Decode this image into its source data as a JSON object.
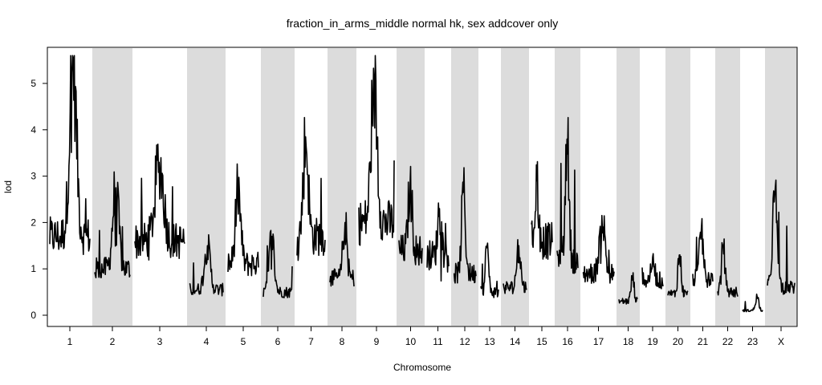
{
  "chart_data": {
    "type": "line",
    "title": "fraction_in_arms_middle normal hk, sex addcover only",
    "xlabel": "Chromosome",
    "ylabel": "lod",
    "ylim": [
      0,
      5.6
    ],
    "yticks": [
      0,
      1,
      2,
      3,
      4,
      5
    ],
    "grid": false,
    "legend": "none",
    "shading": {
      "color": "#dcdcdc",
      "pattern": "alternate chromosomes shaded"
    },
    "line_color": "#000000",
    "chromosomes": [
      {
        "label": "1",
        "shaded": false,
        "peak": 5.55,
        "mean": 1.7
      },
      {
        "label": "2",
        "shaded": true,
        "peak": 2.75,
        "mean": 1.0
      },
      {
        "label": "3",
        "shaded": false,
        "peak": 3.3,
        "mean": 1.6
      },
      {
        "label": "4",
        "shaded": true,
        "peak": 1.5,
        "mean": 0.55
      },
      {
        "label": "5",
        "shaded": false,
        "peak": 2.7,
        "mean": 1.1
      },
      {
        "label": "6",
        "shaded": true,
        "peak": 1.7,
        "mean": 0.5
      },
      {
        "label": "7",
        "shaded": false,
        "peak": 3.85,
        "mean": 1.7
      },
      {
        "label": "8",
        "shaded": true,
        "peak": 2.0,
        "mean": 0.8
      },
      {
        "label": "9",
        "shaded": false,
        "peak": 5.05,
        "mean": 2.0
      },
      {
        "label": "10",
        "shaded": true,
        "peak": 2.8,
        "mean": 1.4
      },
      {
        "label": "11",
        "shaded": false,
        "peak": 2.3,
        "mean": 1.3
      },
      {
        "label": "12",
        "shaded": true,
        "peak": 2.65,
        "mean": 0.9
      },
      {
        "label": "13",
        "shaded": false,
        "peak": 1.5,
        "mean": 0.5
      },
      {
        "label": "14",
        "shaded": true,
        "peak": 1.5,
        "mean": 0.6
      },
      {
        "label": "15",
        "shaded": false,
        "peak": 2.9,
        "mean": 1.6
      },
      {
        "label": "16",
        "shaded": true,
        "peak": 3.8,
        "mean": 1.2
      },
      {
        "label": "17",
        "shaded": false,
        "peak": 2.15,
        "mean": 0.9
      },
      {
        "label": "18",
        "shaded": true,
        "peak": 0.8,
        "mean": 0.3
      },
      {
        "label": "19",
        "shaded": false,
        "peak": 1.25,
        "mean": 0.75
      },
      {
        "label": "20",
        "shaded": true,
        "peak": 1.3,
        "mean": 0.45
      },
      {
        "label": "21",
        "shaded": false,
        "peak": 1.9,
        "mean": 0.8
      },
      {
        "label": "22",
        "shaded": true,
        "peak": 1.5,
        "mean": 0.5
      },
      {
        "label": "23",
        "shaded": false,
        "peak": 0.4,
        "mean": 0.1
      },
      {
        "label": "X",
        "shaded": true,
        "peak": 2.6,
        "mean": 0.6
      }
    ]
  }
}
